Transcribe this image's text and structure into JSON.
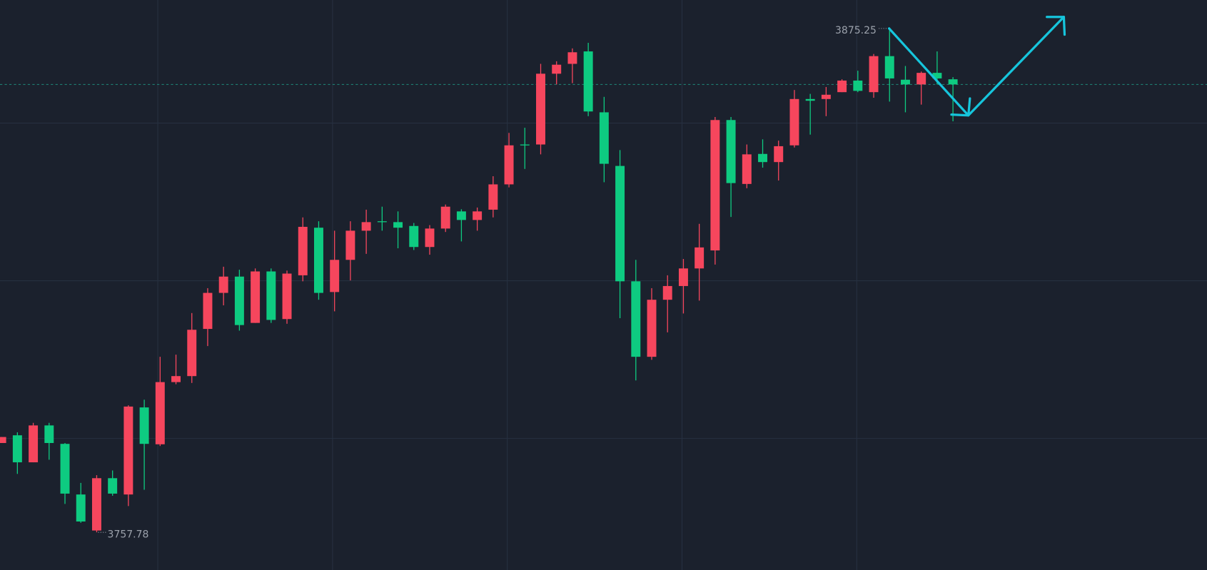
{
  "chart_data": {
    "type": "candlestick",
    "up_color": "#f6465d",
    "down_color": "#0ecb81",
    "open": [
      3778.6,
      3780.4,
      3774.1,
      3782.7,
      3778.4,
      3766.6,
      3758.2,
      3770.4,
      3766.6,
      3786.9,
      3778.3,
      3792.8,
      3794.2,
      3805.2,
      3813.6,
      3817.4,
      3806.6,
      3818.6,
      3807.5,
      3817.7,
      3828.8,
      3813.8,
      3821.3,
      3828.1,
      3830.3,
      3830.1,
      3829.2,
      3824.3,
      3828.6,
      3832.6,
      3830.6,
      3833.0,
      3838.9,
      3848.2,
      3848.2,
      3864.7,
      3867.0,
      3869.9,
      3855.7,
      3843.2,
      3816.3,
      3798.7,
      3812.0,
      3815.2,
      3819.3,
      3823.5,
      3853.9,
      3839.0,
      3846.0,
      3844.1,
      3848.0,
      3858.8,
      3858.8,
      3860.4,
      3863.1,
      3860.4,
      3868.8,
      3863.3,
      3862.2,
      3864.9,
      3863.4
    ],
    "high": [
      3780.0,
      3781.1,
      3783.3,
      3783.3,
      3778.6,
      3769.3,
      3771.1,
      3772.2,
      3787.4,
      3788.7,
      3798.7,
      3799.2,
      3808.9,
      3814.7,
      3819.7,
      3819.0,
      3819.3,
      3819.3,
      3818.8,
      3831.2,
      3830.3,
      3828.1,
      3830.3,
      3833.0,
      3833.7,
      3832.6,
      3829.9,
      3829.4,
      3834.2,
      3833.1,
      3833.5,
      3840.8,
      3850.9,
      3852.1,
      3867.0,
      3867.6,
      3870.6,
      3871.9,
      3859.3,
      3846.9,
      3821.3,
      3814.7,
      3817.7,
      3821.5,
      3829.7,
      3854.6,
      3854.6,
      3848.2,
      3849.4,
      3849.1,
      3860.9,
      3860.0,
      3861.6,
      3863.4,
      3865.4,
      3869.3,
      3875.25,
      3866.5,
      3865.2,
      3869.9,
      3863.9
    ],
    "low": [
      3778.6,
      3771.4,
      3774.1,
      3774.7,
      3764.4,
      3760.0,
      3757.78,
      3766.3,
      3763.9,
      3767.7,
      3777.9,
      3792.3,
      3792.6,
      3801.2,
      3810.7,
      3804.8,
      3806.6,
      3806.6,
      3806.4,
      3816.3,
      3812.0,
      3809.3,
      3816.5,
      3822.7,
      3828.1,
      3824.0,
      3823.6,
      3822.5,
      3827.8,
      3825.6,
      3828.1,
      3831.2,
      3838.2,
      3842.5,
      3845.9,
      3862.2,
      3862.5,
      3854.8,
      3839.4,
      3807.7,
      3793.2,
      3798.0,
      3804.4,
      3808.8,
      3811.8,
      3820.2,
      3831.3,
      3838.0,
      3842.8,
      3839.8,
      3847.5,
      3850.5,
      3854.8,
      3860.4,
      3860.4,
      3859.1,
      3858.2,
      3855.7,
      3857.5,
      3862.2,
      3853.6
    ],
    "close": [
      3780.0,
      3774.1,
      3782.7,
      3778.6,
      3766.8,
      3760.3,
      3770.4,
      3766.8,
      3787.1,
      3778.4,
      3792.8,
      3794.2,
      3805.0,
      3813.6,
      3817.4,
      3806.1,
      3818.6,
      3807.3,
      3818.1,
      3829.0,
      3813.6,
      3821.3,
      3828.1,
      3830.1,
      3830.1,
      3828.8,
      3824.3,
      3828.6,
      3833.7,
      3830.6,
      3832.6,
      3838.9,
      3848.0,
      3848.0,
      3864.7,
      3866.8,
      3869.7,
      3855.9,
      3843.7,
      3816.3,
      3798.7,
      3812.0,
      3815.2,
      3819.3,
      3824.2,
      3853.9,
      3839.2,
      3845.9,
      3844.1,
      3847.8,
      3858.8,
      3858.4,
      3859.8,
      3863.1,
      3860.7,
      3868.8,
      3863.6,
      3862.2,
      3864.9,
      3863.6,
      3862.2
    ]
  }
}
